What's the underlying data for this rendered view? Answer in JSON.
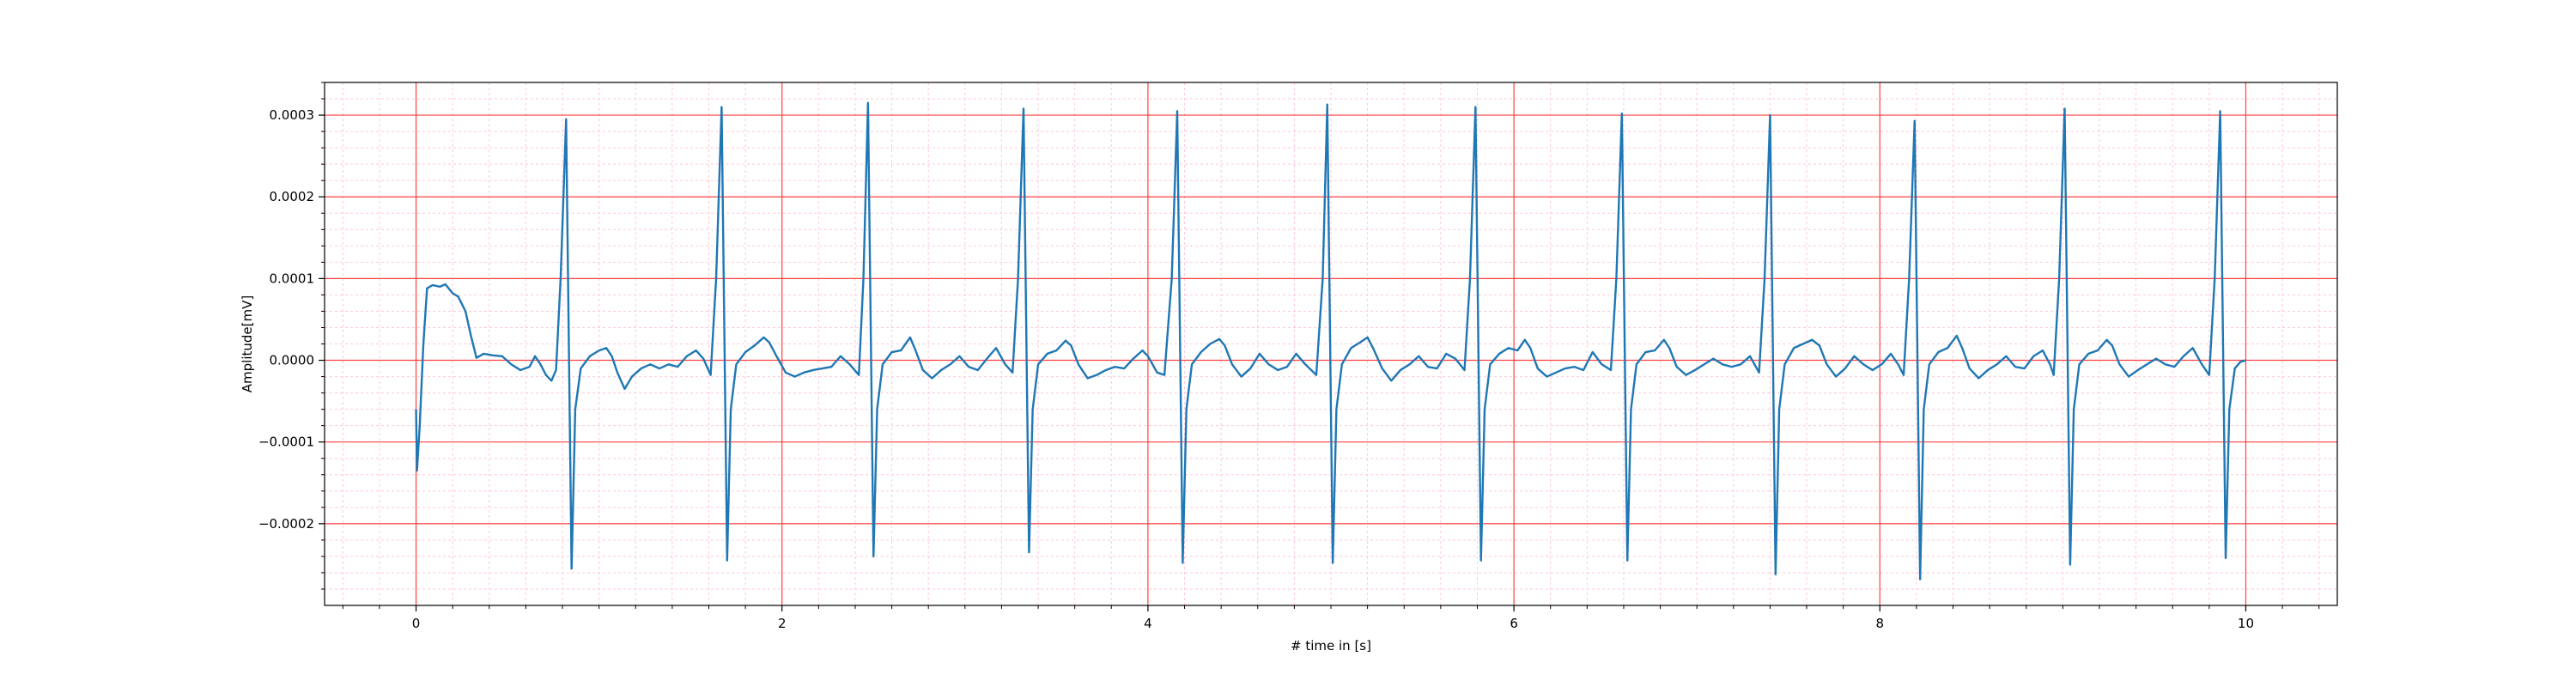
{
  "chart_data": {
    "type": "line",
    "title": "",
    "xlabel": "# time in [s]",
    "ylabel": "Amplitude[mV]",
    "xlim": [
      -0.5,
      10.5
    ],
    "ylim": [
      -0.0003,
      0.00034
    ],
    "x_ticks": [
      0,
      2,
      4,
      6,
      8,
      10
    ],
    "x_tick_labels": [
      "0",
      "2",
      "4",
      "6",
      "8",
      "10"
    ],
    "y_ticks": [
      -0.0002,
      -0.0001,
      0.0,
      0.0001,
      0.0002,
      0.0003
    ],
    "y_tick_labels": [
      "−0.0002",
      "−0.0001",
      "0.0000",
      "0.0001",
      "0.0002",
      "0.0003"
    ],
    "grid": {
      "major": true,
      "minor": true,
      "major_color": "#ff4040",
      "minor_color": "#ffc8d8"
    },
    "line_color": "#1f77b4",
    "series": [
      {
        "values": [
          [
            0.0,
            -6e-05
          ],
          [
            0.005,
            -0.000135
          ],
          [
            0.02,
            -8e-05
          ],
          [
            0.04,
            2e-05
          ],
          [
            0.06,
            8.8e-05
          ],
          [
            0.09,
            9.2e-05
          ],
          [
            0.13,
            9e-05
          ],
          [
            0.16,
            9.3e-05
          ],
          [
            0.2,
            8.2e-05
          ],
          [
            0.23,
            7.8e-05
          ],
          [
            0.27,
            6e-05
          ],
          [
            0.3,
            3e-05
          ],
          [
            0.33,
            3e-06
          ],
          [
            0.37,
            8e-06
          ],
          [
            0.42,
            6e-06
          ],
          [
            0.47,
            5e-06
          ],
          [
            0.52,
            -5e-06
          ],
          [
            0.57,
            -1.2e-05
          ],
          [
            0.62,
            -8e-06
          ],
          [
            0.65,
            5e-06
          ],
          [
            0.68,
            -5e-06
          ],
          [
            0.71,
            -1.8e-05
          ],
          [
            0.74,
            -2.5e-05
          ],
          [
            0.765,
            -1.2e-05
          ],
          [
            0.79,
            0.0001
          ],
          [
            0.82,
            0.000295
          ],
          [
            0.85,
            -0.000255
          ],
          [
            0.87,
            -6e-05
          ],
          [
            0.9,
            -1e-05
          ],
          [
            0.95,
            5e-06
          ],
          [
            1.0,
            1.2e-05
          ],
          [
            1.04,
            1.5e-05
          ],
          [
            1.07,
            5e-06
          ],
          [
            1.1,
            -1.5e-05
          ],
          [
            1.14,
            -3.5e-05
          ],
          [
            1.18,
            -2e-05
          ],
          [
            1.23,
            -1e-05
          ],
          [
            1.28,
            -5e-06
          ],
          [
            1.33,
            -1e-05
          ],
          [
            1.38,
            -5e-06
          ],
          [
            1.43,
            -8e-06
          ],
          [
            1.48,
            5e-06
          ],
          [
            1.53,
            1.2e-05
          ],
          [
            1.57,
            2e-06
          ],
          [
            1.61,
            -1.8e-05
          ],
          [
            1.64,
            0.0001
          ],
          [
            1.67,
            0.00031
          ],
          [
            1.7,
            -0.000245
          ],
          [
            1.72,
            -6e-05
          ],
          [
            1.75,
            -5e-06
          ],
          [
            1.8,
            1e-05
          ],
          [
            1.85,
            1.8e-05
          ],
          [
            1.9,
            2.8e-05
          ],
          [
            1.93,
            2.2e-05
          ],
          [
            1.97,
            5e-06
          ],
          [
            2.02,
            -1.5e-05
          ],
          [
            2.07,
            -2e-05
          ],
          [
            2.12,
            -1.5e-05
          ],
          [
            2.17,
            -1.2e-05
          ],
          [
            2.22,
            -1e-05
          ],
          [
            2.27,
            -8e-06
          ],
          [
            2.32,
            5e-06
          ],
          [
            2.37,
            -5e-06
          ],
          [
            2.42,
            -1.8e-05
          ],
          [
            2.445,
            0.0001
          ],
          [
            2.47,
            0.000315
          ],
          [
            2.5,
            -0.00024
          ],
          [
            2.52,
            -6e-05
          ],
          [
            2.55,
            -5e-06
          ],
          [
            2.6,
            1e-05
          ],
          [
            2.65,
            1.2e-05
          ],
          [
            2.7,
            2.8e-05
          ],
          [
            2.73,
            1.2e-05
          ],
          [
            2.77,
            -1.2e-05
          ],
          [
            2.82,
            -2.2e-05
          ],
          [
            2.87,
            -1.2e-05
          ],
          [
            2.92,
            -5e-06
          ],
          [
            2.97,
            5e-06
          ],
          [
            3.02,
            -8e-06
          ],
          [
            3.07,
            -1.2e-05
          ],
          [
            3.12,
            2e-06
          ],
          [
            3.17,
            1.5e-05
          ],
          [
            3.22,
            -5e-06
          ],
          [
            3.26,
            -1.5e-05
          ],
          [
            3.29,
            0.0001
          ],
          [
            3.32,
            0.000308
          ],
          [
            3.35,
            -0.000235
          ],
          [
            3.37,
            -6e-05
          ],
          [
            3.4,
            -5e-06
          ],
          [
            3.45,
            8e-06
          ],
          [
            3.5,
            1.2e-05
          ],
          [
            3.55,
            2.4e-05
          ],
          [
            3.58,
            1.8e-05
          ],
          [
            3.62,
            -5e-06
          ],
          [
            3.67,
            -2.2e-05
          ],
          [
            3.72,
            -1.8e-05
          ],
          [
            3.77,
            -1.2e-05
          ],
          [
            3.82,
            -8e-06
          ],
          [
            3.87,
            -1e-05
          ],
          [
            3.92,
            2e-06
          ],
          [
            3.97,
            1.2e-05
          ],
          [
            4.0,
            5e-06
          ],
          [
            4.05,
            -1.5e-05
          ],
          [
            4.09,
            -1.8e-05
          ],
          [
            4.13,
            0.0001
          ],
          [
            4.16,
            0.000305
          ],
          [
            4.19,
            -0.000248
          ],
          [
            4.21,
            -6e-05
          ],
          [
            4.24,
            -5e-06
          ],
          [
            4.29,
            1e-05
          ],
          [
            4.34,
            2e-05
          ],
          [
            4.39,
            2.6e-05
          ],
          [
            4.42,
            1.8e-05
          ],
          [
            4.46,
            -5e-06
          ],
          [
            4.51,
            -2e-05
          ],
          [
            4.56,
            -1e-05
          ],
          [
            4.61,
            8e-06
          ],
          [
            4.66,
            -5e-06
          ],
          [
            4.71,
            -1.2e-05
          ],
          [
            4.76,
            -8e-06
          ],
          [
            4.81,
            8e-06
          ],
          [
            4.86,
            -5e-06
          ],
          [
            4.92,
            -1.8e-05
          ],
          [
            4.955,
            0.0001
          ],
          [
            4.98,
            0.000313
          ],
          [
            5.01,
            -0.000248
          ],
          [
            5.03,
            -6e-05
          ],
          [
            5.06,
            -5e-06
          ],
          [
            5.11,
            1.5e-05
          ],
          [
            5.16,
            2.2e-05
          ],
          [
            5.2,
            2.8e-05
          ],
          [
            5.23,
            1.5e-05
          ],
          [
            5.28,
            -1e-05
          ],
          [
            5.33,
            -2.5e-05
          ],
          [
            5.38,
            -1.2e-05
          ],
          [
            5.43,
            -5e-06
          ],
          [
            5.48,
            5e-06
          ],
          [
            5.53,
            -8e-06
          ],
          [
            5.58,
            -1e-05
          ],
          [
            5.63,
            8e-06
          ],
          [
            5.68,
            2e-06
          ],
          [
            5.73,
            -1.2e-05
          ],
          [
            5.76,
            0.0001
          ],
          [
            5.79,
            0.00031
          ],
          [
            5.82,
            -0.000245
          ],
          [
            5.84,
            -6e-05
          ],
          [
            5.87,
            -5e-06
          ],
          [
            5.92,
            8e-06
          ],
          [
            5.97,
            1.5e-05
          ],
          [
            6.02,
            1.2e-05
          ],
          [
            6.06,
            2.5e-05
          ],
          [
            6.09,
            1.5e-05
          ],
          [
            6.13,
            -1e-05
          ],
          [
            6.18,
            -2e-05
          ],
          [
            6.23,
            -1.5e-05
          ],
          [
            6.28,
            -1e-05
          ],
          [
            6.33,
            -8e-06
          ],
          [
            6.38,
            -1.2e-05
          ],
          [
            6.43,
            1e-05
          ],
          [
            6.48,
            -5e-06
          ],
          [
            6.53,
            -1.2e-05
          ],
          [
            6.56,
            0.0001
          ],
          [
            6.59,
            0.000302
          ],
          [
            6.62,
            -0.000245
          ],
          [
            6.64,
            -6e-05
          ],
          [
            6.67,
            -5e-06
          ],
          [
            6.72,
            1e-05
          ],
          [
            6.77,
            1.2e-05
          ],
          [
            6.82,
            2.5e-05
          ],
          [
            6.85,
            1.5e-05
          ],
          [
            6.89,
            -8e-06
          ],
          [
            6.94,
            -1.8e-05
          ],
          [
            6.99,
            -1.2e-05
          ],
          [
            7.04,
            -5e-06
          ],
          [
            7.09,
            2e-06
          ],
          [
            7.14,
            -5e-06
          ],
          [
            7.19,
            -8e-06
          ],
          [
            7.24,
            -5e-06
          ],
          [
            7.29,
            5e-06
          ],
          [
            7.34,
            -1.5e-05
          ],
          [
            7.37,
            0.0001
          ],
          [
            7.4,
            0.0003
          ],
          [
            7.43,
            -0.000262
          ],
          [
            7.45,
            -6e-05
          ],
          [
            7.48,
            -5e-06
          ],
          [
            7.53,
            1.5e-05
          ],
          [
            7.58,
            2e-05
          ],
          [
            7.63,
            2.5e-05
          ],
          [
            7.67,
            1.8e-05
          ],
          [
            7.71,
            -5e-06
          ],
          [
            7.76,
            -2e-05
          ],
          [
            7.81,
            -1e-05
          ],
          [
            7.86,
            5e-06
          ],
          [
            7.91,
            -5e-06
          ],
          [
            7.96,
            -1.2e-05
          ],
          [
            8.01,
            -5e-06
          ],
          [
            8.06,
            8e-06
          ],
          [
            8.1,
            -5e-06
          ],
          [
            8.13,
            -1.8e-05
          ],
          [
            8.16,
            0.0001
          ],
          [
            8.19,
            0.000293
          ],
          [
            8.22,
            -0.000268
          ],
          [
            8.24,
            -6e-05
          ],
          [
            8.27,
            -5e-06
          ],
          [
            8.32,
            1e-05
          ],
          [
            8.37,
            1.5e-05
          ],
          [
            8.42,
            3e-05
          ],
          [
            8.45,
            1.5e-05
          ],
          [
            8.49,
            -1e-05
          ],
          [
            8.54,
            -2.2e-05
          ],
          [
            8.59,
            -1.2e-05
          ],
          [
            8.64,
            -5e-06
          ],
          [
            8.69,
            5e-06
          ],
          [
            8.74,
            -8e-06
          ],
          [
            8.79,
            -1e-05
          ],
          [
            8.84,
            5e-06
          ],
          [
            8.89,
            1.2e-05
          ],
          [
            8.93,
            -5e-06
          ],
          [
            8.95,
            -1.8e-05
          ],
          [
            8.98,
            0.0001
          ],
          [
            9.01,
            0.000308
          ],
          [
            9.04,
            -0.00025
          ],
          [
            9.06,
            -6e-05
          ],
          [
            9.09,
            -5e-06
          ],
          [
            9.14,
            8e-06
          ],
          [
            9.19,
            1.2e-05
          ],
          [
            9.24,
            2.5e-05
          ],
          [
            9.27,
            1.8e-05
          ],
          [
            9.31,
            -5e-06
          ],
          [
            9.36,
            -2e-05
          ],
          [
            9.41,
            -1.2e-05
          ],
          [
            9.46,
            -5e-06
          ],
          [
            9.51,
            2e-06
          ],
          [
            9.56,
            -5e-06
          ],
          [
            9.61,
            -8e-06
          ],
          [
            9.66,
            5e-06
          ],
          [
            9.71,
            1.5e-05
          ],
          [
            9.76,
            -5e-06
          ],
          [
            9.8,
            -1.8e-05
          ],
          [
            9.83,
            0.0001
          ],
          [
            9.86,
            0.000305
          ],
          [
            9.89,
            -0.000242
          ],
          [
            9.91,
            -6e-05
          ],
          [
            9.94,
            -1e-05
          ],
          [
            9.97,
            -2e-06
          ],
          [
            10.0,
            0.0
          ]
        ]
      }
    ]
  }
}
